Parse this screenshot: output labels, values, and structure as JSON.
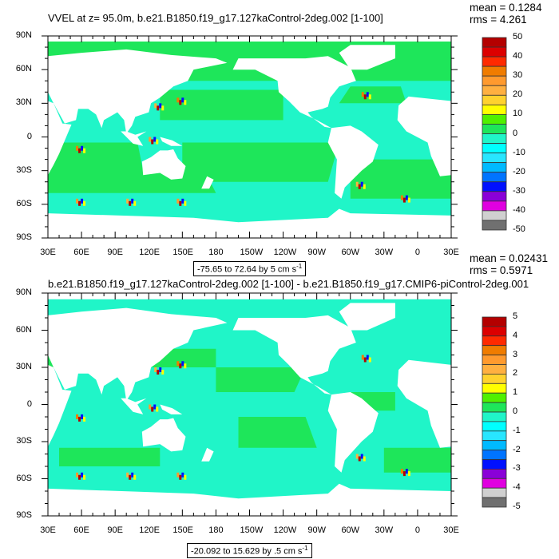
{
  "panels": [
    {
      "title": "VVEL at z=  95.0m, b.e21.B1850.f19_g17.127kaControl-2deg.002 [1-100]",
      "mean": "mean = 0.1284",
      "rms": "rms = 4.261",
      "info_text": "-75.65 to 72.64 by 5 cm s",
      "info_exp": "-1",
      "colorbar_labels": [
        "50",
        "40",
        "30",
        "20",
        "10",
        "0",
        "-10",
        "-20",
        "-30",
        "-40",
        "-50"
      ],
      "field": "VVEL",
      "units": "cm s-1"
    },
    {
      "title": "b.e21.B1850.f19_g17.127kaControl-2deg.002 [1-100] - b.e21.B1850.f19_g17.CMIP6-piControl-2deg.001",
      "mean": "mean = 0.02431",
      "rms": "rms = 0.5971",
      "info_text": "-20.092 to 15.629 by .5 cm s",
      "info_exp": "-1",
      "colorbar_labels": [
        "5",
        "4",
        "3",
        "2",
        "1",
        "0",
        "-1",
        "-2",
        "-3",
        "-4",
        "-5"
      ],
      "field": "VVEL difference",
      "units": "cm s-1"
    }
  ],
  "axes": {
    "x_labels": [
      "30E",
      "60E",
      "90E",
      "120E",
      "150E",
      "180",
      "150W",
      "120W",
      "90W",
      "60W",
      "30W",
      "0",
      "30E"
    ],
    "y_labels": [
      "90N",
      "60N",
      "30N",
      "0",
      "30S",
      "60S",
      "90S"
    ],
    "lon_range": [
      30,
      390
    ],
    "lat_range": [
      -90,
      90
    ]
  },
  "colors": {
    "palette": [
      "#b40000",
      "#dc0000",
      "#ff2a00",
      "#f07c00",
      "#ff9a2e",
      "#ffb040",
      "#ffd22e",
      "#ffff00",
      "#50f000",
      "#1ee65a",
      "#20f5c8",
      "#00ffff",
      "#28e6ff",
      "#00baff",
      "#0074ff",
      "#0010ff",
      "#8a00d8",
      "#e000e0",
      "#d0d0d0",
      "#707070"
    ],
    "land": "#ffffff"
  }
}
